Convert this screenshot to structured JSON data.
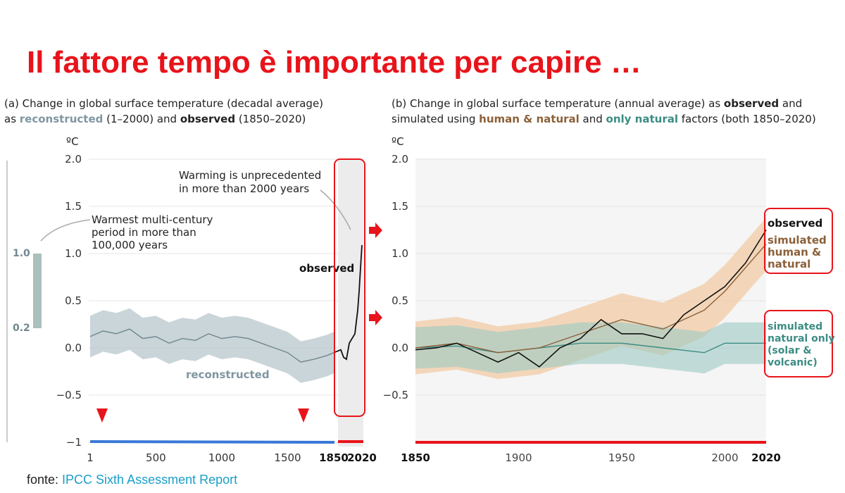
{
  "slide": {
    "title": "Il fattore tempo è importante per capire …",
    "footer_prefix": "fonte: ",
    "footer_source": "IPCC Sixth Assessment Report"
  },
  "panel_a": {
    "title_line1": "(a) Change in global surface temperature (decadal average)",
    "title_line2_parts": [
      "as ",
      "reconstructed",
      " (1–2000) and ",
      "observed",
      " (1850–2020)"
    ],
    "unit": "ºC",
    "annotation_warmest": [
      "Warmest multi-century",
      "period in more than",
      "100,000 years"
    ],
    "annotation_unprecedented": [
      "Warming is unprecedented",
      "in more than 2000 years"
    ],
    "label_observed": "observed",
    "label_reconstructed": "reconstructed",
    "side_bar_labels": [
      "1.0",
      "0.2"
    ]
  },
  "panel_b": {
    "title_line1_parts": [
      "(b) Change in global surface temperature (annual average) as ",
      "observed",
      " and"
    ],
    "title_line2_parts": [
      "simulated using ",
      "human & natural",
      " and ",
      "only natural",
      " factors (both 1850–2020)"
    ],
    "unit": "ºC",
    "legend": {
      "observed": "observed",
      "human_natural": [
        "simulated",
        "human &",
        "natural"
      ],
      "natural_only": [
        "simulated",
        "natural only",
        "(solar &",
        "volcanic)"
      ]
    }
  },
  "colors": {
    "title_red": "#e8141b",
    "reconstructed": "#7f96a0",
    "observed": "#111111",
    "human_natural": "#8b6039",
    "human_natural_band": "#f2c9a0",
    "natural_only": "#3c8c84",
    "natural_only_band": "#9cc9c3",
    "link": "#1a9fc6",
    "timeline_blue": "#3a78d8"
  },
  "chart_data": [
    {
      "type": "line",
      "title": "(a) Change in global surface temperature (decadal average)",
      "ylabel": "ºC",
      "ylim": [
        -1,
        2
      ],
      "yticks": [
        "2.0",
        "1.5",
        "1.0",
        "0.5",
        "0.0",
        "−0.5",
        "−1"
      ],
      "xticks": [
        "1",
        "500",
        "1000",
        "1500",
        "1850",
        "2020"
      ],
      "series": [
        {
          "name": "reconstructed",
          "x": [
            1,
            100,
            200,
            300,
            400,
            500,
            600,
            700,
            800,
            900,
            1000,
            1100,
            1200,
            1300,
            1400,
            1500,
            1600,
            1700,
            1800,
            1850
          ],
          "y": [
            0.12,
            0.18,
            0.15,
            0.2,
            0.1,
            0.12,
            0.05,
            0.1,
            0.08,
            0.15,
            0.1,
            0.12,
            0.1,
            0.05,
            0.0,
            -0.05,
            -0.15,
            -0.12,
            -0.08,
            -0.05
          ]
        },
        {
          "name": "observed",
          "x": [
            1850,
            1870,
            1890,
            1910,
            1930,
            1950,
            1970,
            1990,
            2000,
            2010,
            2020
          ],
          "y": [
            -0.05,
            -0.02,
            -0.1,
            -0.12,
            0.05,
            0.1,
            0.15,
            0.4,
            0.6,
            0.85,
            1.09
          ]
        }
      ]
    },
    {
      "type": "line",
      "title": "(b) Change in global surface temperature (annual average)",
      "ylabel": "ºC",
      "ylim": [
        -1,
        2
      ],
      "yticks": [
        "2.0",
        "1.5",
        "1.0",
        "0.5",
        "0.0",
        "−0.5"
      ],
      "xticks": [
        "1850",
        "1900",
        "1950",
        "2000",
        "2020"
      ],
      "series": [
        {
          "name": "observed",
          "x": [
            1850,
            1860,
            1870,
            1880,
            1890,
            1900,
            1910,
            1920,
            1930,
            1940,
            1950,
            1960,
            1970,
            1980,
            1990,
            2000,
            2010,
            2020
          ],
          "y": [
            -0.02,
            0.0,
            0.05,
            -0.05,
            -0.15,
            -0.05,
            -0.2,
            0.0,
            0.1,
            0.3,
            0.15,
            0.15,
            0.1,
            0.35,
            0.5,
            0.65,
            0.9,
            1.25
          ]
        },
        {
          "name": "simulated human & natural",
          "x": [
            1850,
            1870,
            1890,
            1910,
            1930,
            1950,
            1970,
            1990,
            2000,
            2010,
            2020
          ],
          "y": [
            0.0,
            0.05,
            -0.05,
            0.0,
            0.15,
            0.3,
            0.2,
            0.4,
            0.6,
            0.85,
            1.1
          ]
        },
        {
          "name": "simulated natural only (solar & volcanic)",
          "x": [
            1850,
            1870,
            1890,
            1910,
            1930,
            1950,
            1970,
            1990,
            2000,
            2010,
            2020
          ],
          "y": [
            0.0,
            0.02,
            -0.05,
            0.0,
            0.05,
            0.05,
            0.0,
            -0.05,
            0.05,
            0.05,
            0.05
          ]
        }
      ]
    }
  ]
}
